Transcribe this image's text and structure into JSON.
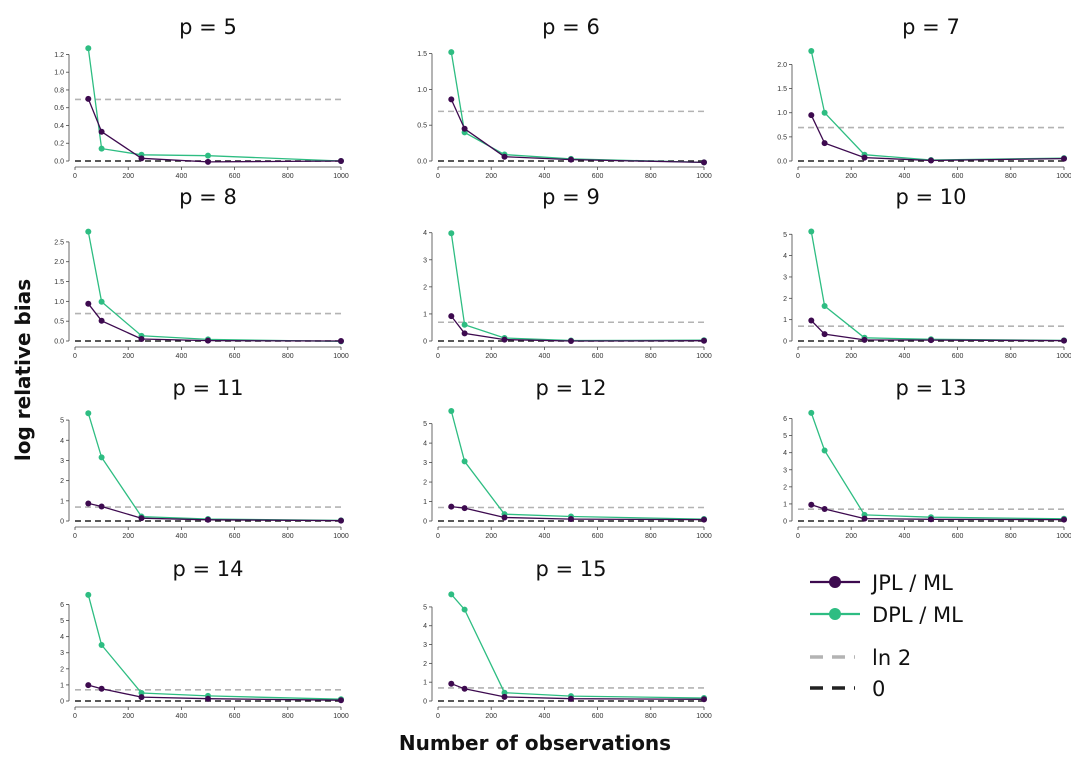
{
  "figure": {
    "xlabel": "Number of observations",
    "ylabel": "log relative bias"
  },
  "legend": [
    {
      "label": "JPL / ML",
      "kind": "series",
      "color": "#3d0a4f"
    },
    {
      "label": "DPL / ML",
      "kind": "series",
      "color": "#2ebd82"
    },
    {
      "label": "ln 2",
      "kind": "dashed",
      "color": "#b3b3b3"
    },
    {
      "label": "0",
      "kind": "dashed",
      "color": "#222222"
    }
  ],
  "chart_data": [
    {
      "type": "line",
      "title": "p = 5",
      "x": [
        50,
        100,
        250,
        500,
        1000
      ],
      "xlim": [
        0,
        1000
      ],
      "xticks": [
        0,
        200,
        400,
        600,
        800,
        1000
      ],
      "ylim": [
        0,
        1.25
      ],
      "yticks": [
        "0.0",
        "0.2",
        "0.4",
        "0.6",
        "0.8",
        "1.0",
        "1.2"
      ],
      "series": [
        {
          "name": "JPL / ML",
          "values": [
            0.7,
            0.33,
            0.03,
            -0.01,
            0.0
          ]
        },
        {
          "name": "DPL / ML",
          "values": [
            1.27,
            0.14,
            0.07,
            0.06,
            0.0
          ]
        }
      ],
      "hlines": [
        0.693,
        0
      ]
    },
    {
      "type": "line",
      "title": "p = 6",
      "x": [
        50,
        100,
        250,
        500,
        1000
      ],
      "xlim": [
        0,
        1000
      ],
      "xticks": [
        0,
        200,
        400,
        600,
        800,
        1000
      ],
      "ylim": [
        0,
        1.55
      ],
      "yticks": [
        "0.0",
        "0.5",
        "1.0",
        "1.5"
      ],
      "series": [
        {
          "name": "JPL / ML",
          "values": [
            0.86,
            0.45,
            0.06,
            0.02,
            -0.02
          ]
        },
        {
          "name": "DPL / ML",
          "values": [
            1.52,
            0.4,
            0.09,
            0.03,
            -0.02
          ]
        }
      ],
      "hlines": [
        0.693,
        0
      ]
    },
    {
      "type": "line",
      "title": "p = 7",
      "x": [
        50,
        100,
        250,
        500,
        1000
      ],
      "xlim": [
        0,
        1000
      ],
      "xticks": [
        0,
        200,
        400,
        600,
        800,
        1000
      ],
      "ylim": [
        0,
        2.3
      ],
      "yticks": [
        "0.0",
        "0.5",
        "1.0",
        "1.5",
        "2.0"
      ],
      "series": [
        {
          "name": "JPL / ML",
          "values": [
            0.95,
            0.37,
            0.07,
            0.01,
            0.05
          ]
        },
        {
          "name": "DPL / ML",
          "values": [
            2.28,
            1.0,
            0.13,
            0.02,
            0.06
          ]
        }
      ],
      "hlines": [
        0.693,
        0
      ]
    },
    {
      "type": "line",
      "title": "p = 8",
      "x": [
        50,
        100,
        250,
        500,
        1000
      ],
      "xlim": [
        0,
        1000
      ],
      "xticks": [
        0,
        200,
        400,
        600,
        800,
        1000
      ],
      "ylim": [
        0,
        2.8
      ],
      "yticks": [
        "0.0",
        "0.5",
        "1.0",
        "1.5",
        "2.0",
        "2.5"
      ],
      "series": [
        {
          "name": "JPL / ML",
          "values": [
            0.94,
            0.51,
            0.05,
            0.01,
            0.0
          ]
        },
        {
          "name": "DPL / ML",
          "values": [
            2.76,
            0.99,
            0.13,
            0.04,
            -0.01
          ]
        }
      ],
      "hlines": [
        0.693,
        0
      ]
    },
    {
      "type": "line",
      "title": "p = 9",
      "x": [
        50,
        100,
        250,
        500,
        1000
      ],
      "xlim": [
        0,
        1000
      ],
      "xticks": [
        0,
        200,
        400,
        600,
        800,
        1000
      ],
      "ylim": [
        0,
        4.1
      ],
      "yticks": [
        "0",
        "1",
        "2",
        "3",
        "4"
      ],
      "series": [
        {
          "name": "JPL / ML",
          "values": [
            0.92,
            0.28,
            0.05,
            0.0,
            0.01
          ]
        },
        {
          "name": "DPL / ML",
          "values": [
            3.98,
            0.6,
            0.11,
            0.02,
            0.03
          ]
        }
      ],
      "hlines": [
        0.693,
        0
      ]
    },
    {
      "type": "line",
      "title": "p = 10",
      "x": [
        50,
        100,
        250,
        500,
        1000
      ],
      "xlim": [
        0,
        1000
      ],
      "xticks": [
        0,
        200,
        400,
        600,
        800,
        1000
      ],
      "ylim": [
        0,
        5.2
      ],
      "yticks": [
        "0",
        "1",
        "2",
        "3",
        "4",
        "5"
      ],
      "series": [
        {
          "name": "JPL / ML",
          "values": [
            0.96,
            0.32,
            0.05,
            0.04,
            0.02
          ]
        },
        {
          "name": "DPL / ML",
          "values": [
            5.13,
            1.64,
            0.15,
            0.08,
            0.03
          ]
        }
      ],
      "hlines": [
        0.693,
        0
      ]
    },
    {
      "type": "line",
      "title": "p = 11",
      "x": [
        50,
        100,
        250,
        500,
        1000
      ],
      "xlim": [
        0,
        1000
      ],
      "xticks": [
        0,
        200,
        400,
        600,
        800,
        1000
      ],
      "ylim": [
        0,
        5.5
      ],
      "yticks": [
        "0",
        "1",
        "2",
        "3",
        "4",
        "5"
      ],
      "series": [
        {
          "name": "JPL / ML",
          "values": [
            0.87,
            0.72,
            0.14,
            0.06,
            0.02
          ]
        },
        {
          "name": "DPL / ML",
          "values": [
            5.34,
            3.15,
            0.22,
            0.1,
            0.03
          ]
        }
      ],
      "hlines": [
        0.693,
        0
      ]
    },
    {
      "type": "line",
      "title": "p = 12",
      "x": [
        50,
        100,
        250,
        500,
        1000
      ],
      "xlim": [
        0,
        1000
      ],
      "xticks": [
        0,
        200,
        400,
        600,
        800,
        1000
      ],
      "ylim": [
        0,
        5.7
      ],
      "yticks": [
        "0",
        "1",
        "2",
        "3",
        "4",
        "5"
      ],
      "series": [
        {
          "name": "JPL / ML",
          "values": [
            0.74,
            0.66,
            0.18,
            0.1,
            0.07
          ]
        },
        {
          "name": "DPL / ML",
          "values": [
            5.65,
            3.06,
            0.35,
            0.23,
            0.1
          ]
        }
      ],
      "hlines": [
        0.693,
        0
      ]
    },
    {
      "type": "line",
      "title": "p = 13",
      "x": [
        50,
        100,
        250,
        500,
        1000
      ],
      "xlim": [
        0,
        1000
      ],
      "xticks": [
        0,
        200,
        400,
        600,
        800,
        1000
      ],
      "ylim": [
        0,
        6.5
      ],
      "yticks": [
        "0",
        "1",
        "2",
        "3",
        "4",
        "5",
        "6"
      ],
      "series": [
        {
          "name": "JPL / ML",
          "values": [
            0.95,
            0.7,
            0.14,
            0.1,
            0.08
          ]
        },
        {
          "name": "DPL / ML",
          "values": [
            6.33,
            4.13,
            0.36,
            0.22,
            0.13
          ]
        }
      ],
      "hlines": [
        0.693,
        0
      ]
    },
    {
      "type": "line",
      "title": "p = 14",
      "x": [
        50,
        100,
        250,
        500,
        1000
      ],
      "xlim": [
        0,
        1000
      ],
      "xticks": [
        0,
        200,
        400,
        600,
        800,
        1000
      ],
      "ylim": [
        0,
        6.9
      ],
      "yticks": [
        "0",
        "1",
        "2",
        "3",
        "4",
        "5",
        "6"
      ],
      "series": [
        {
          "name": "JPL / ML",
          "values": [
            0.99,
            0.76,
            0.24,
            0.14,
            0.05
          ]
        },
        {
          "name": "DPL / ML",
          "values": [
            6.6,
            3.48,
            0.5,
            0.32,
            0.11
          ]
        }
      ],
      "hlines": [
        0.693,
        0
      ]
    },
    {
      "type": "line",
      "title": "p = 15",
      "x": [
        50,
        100,
        250,
        500,
        1000
      ],
      "xlim": [
        0,
        1000
      ],
      "xticks": [
        0,
        200,
        400,
        600,
        800,
        1000
      ],
      "ylim": [
        0,
        5.9
      ],
      "yticks": [
        "0",
        "1",
        "2",
        "3",
        "4",
        "5"
      ],
      "series": [
        {
          "name": "JPL / ML",
          "values": [
            0.92,
            0.65,
            0.22,
            0.12,
            0.09
          ]
        },
        {
          "name": "DPL / ML",
          "values": [
            5.67,
            4.86,
            0.44,
            0.26,
            0.16
          ]
        }
      ],
      "hlines": [
        0.693,
        0
      ]
    }
  ]
}
